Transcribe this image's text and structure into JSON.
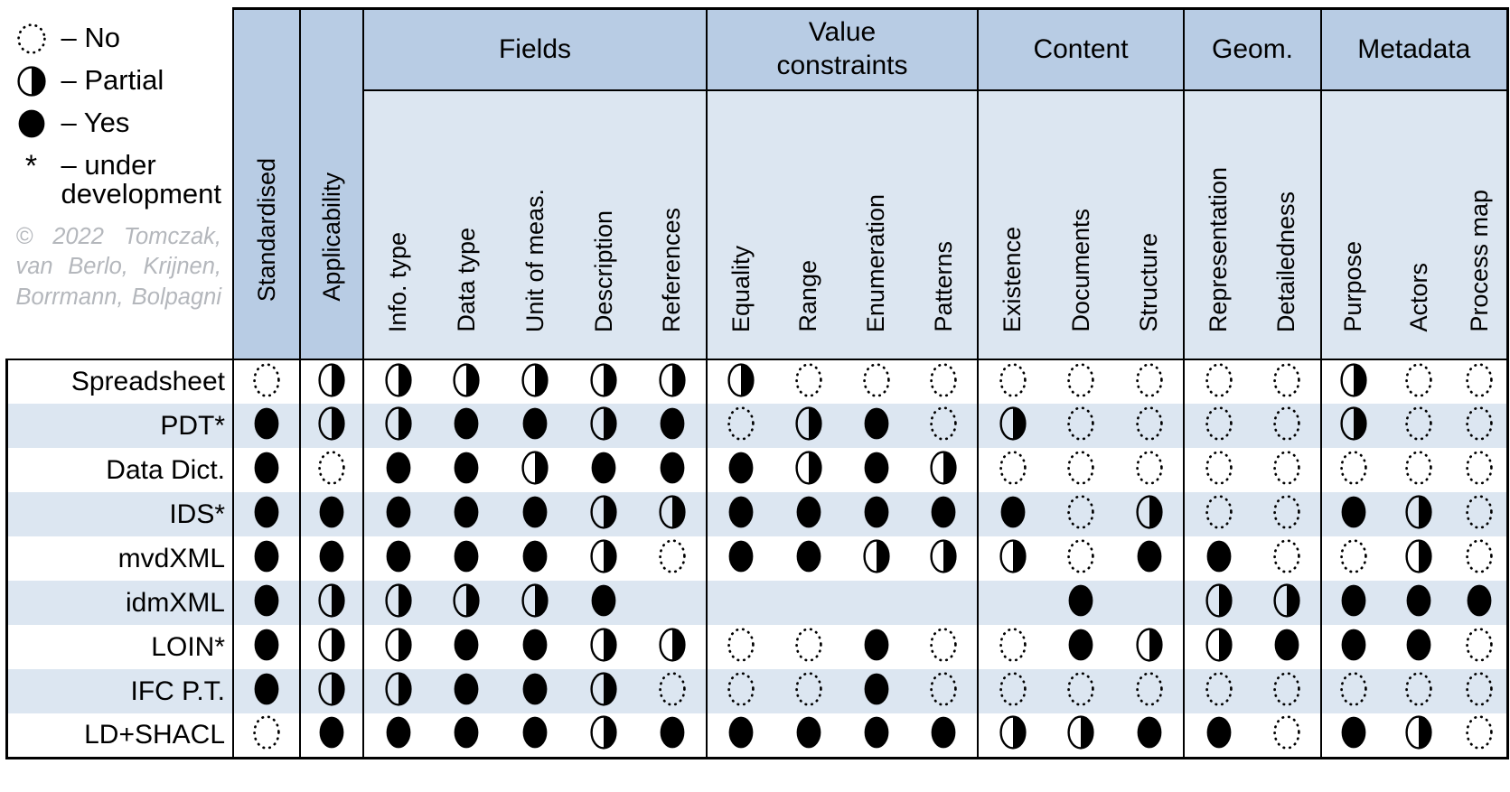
{
  "legend": {
    "items": [
      {
        "symbol": "no",
        "label": "– No"
      },
      {
        "symbol": "partial",
        "label": "– Partial"
      },
      {
        "symbol": "yes",
        "label": "– Yes"
      },
      {
        "symbol": "asterisk",
        "label": "– under development"
      }
    ],
    "copyright_lines": [
      "© 2022 Tomczak,",
      "van Berlo, Krijnen,",
      "Borrmann, Bolpagni"
    ]
  },
  "table": {
    "standalone_columns": [
      "Standardised",
      "Applicability"
    ],
    "groups": [
      {
        "label": "Fields",
        "columns": [
          "Info. type",
          "Data type",
          "Unit of meas.",
          "Description",
          "References"
        ]
      },
      {
        "label": "Value constraints",
        "columns": [
          "Equality",
          "Range",
          "Enumeration",
          "Patterns"
        ]
      },
      {
        "label": "Content",
        "columns": [
          "Existence",
          "Documents",
          "Structure"
        ]
      },
      {
        "label": "Geom.",
        "columns": [
          "Representation",
          "Detailedness"
        ]
      },
      {
        "label": "Metadata",
        "columns": [
          "Purpose",
          "Actors",
          "Process map"
        ]
      }
    ],
    "rows": [
      {
        "label": "Spreadsheet",
        "values": [
          "no",
          "partial",
          "partial",
          "partial",
          "partial",
          "partial",
          "partial",
          "partial",
          "no",
          "no",
          "no",
          "no",
          "no",
          "no",
          "no",
          "no",
          "partial",
          "no",
          "no"
        ]
      },
      {
        "label": "PDT*",
        "values": [
          "yes",
          "partial",
          "partial",
          "yes",
          "yes",
          "partial",
          "yes",
          "no",
          "partial",
          "yes",
          "no",
          "partial",
          "no",
          "no",
          "no",
          "no",
          "partial",
          "no",
          "no"
        ]
      },
      {
        "label": "Data Dict.",
        "values": [
          "yes",
          "no",
          "yes",
          "yes",
          "partial",
          "yes",
          "yes",
          "yes",
          "partial",
          "yes",
          "partial",
          "no",
          "no",
          "no",
          "no",
          "no",
          "no",
          "no",
          "no"
        ]
      },
      {
        "label": "IDS*",
        "values": [
          "yes",
          "yes",
          "yes",
          "yes",
          "yes",
          "partial",
          "partial",
          "yes",
          "yes",
          "yes",
          "yes",
          "yes",
          "no",
          "partial",
          "no",
          "no",
          "yes",
          "partial",
          "no"
        ]
      },
      {
        "label": "mvdXML",
        "values": [
          "yes",
          "yes",
          "yes",
          "yes",
          "yes",
          "partial",
          "no",
          "yes",
          "yes",
          "partial",
          "partial",
          "partial",
          "no",
          "yes",
          "yes",
          "no",
          "no",
          "partial",
          "no"
        ]
      },
      {
        "label": "idmXML",
        "values": [
          "yes",
          "partial",
          "partial",
          "partial",
          "partial",
          "yes",
          "",
          "",
          "",
          "",
          "",
          "",
          "yes",
          "",
          "partial",
          "partial",
          "yes",
          "yes",
          "yes"
        ]
      },
      {
        "label": "LOIN*",
        "values": [
          "yes",
          "partial",
          "partial",
          "yes",
          "yes",
          "partial",
          "partial",
          "no",
          "no",
          "yes",
          "no",
          "no",
          "yes",
          "partial",
          "partial",
          "yes",
          "yes",
          "yes",
          "no"
        ]
      },
      {
        "label": "IFC P.T.",
        "values": [
          "yes",
          "partial",
          "partial",
          "yes",
          "yes",
          "partial",
          "no",
          "no",
          "no",
          "yes",
          "no",
          "no",
          "no",
          "no",
          "no",
          "no",
          "no",
          "no",
          "no"
        ]
      },
      {
        "label": "LD+SHACL",
        "values": [
          "no",
          "yes",
          "yes",
          "yes",
          "yes",
          "partial",
          "yes",
          "yes",
          "yes",
          "yes",
          "yes",
          "partial",
          "partial",
          "yes",
          "yes",
          "no",
          "yes",
          "partial",
          "no"
        ]
      }
    ]
  },
  "colors": {
    "group_header_bg": "#b8cce4",
    "subheader_bg": "#dce6f1",
    "row_alt_bg": "#dce6f1",
    "row_bg": "#ffffff",
    "border": "#000000",
    "symbol": "#000000",
    "copyright_text": "#b4b7bc"
  }
}
